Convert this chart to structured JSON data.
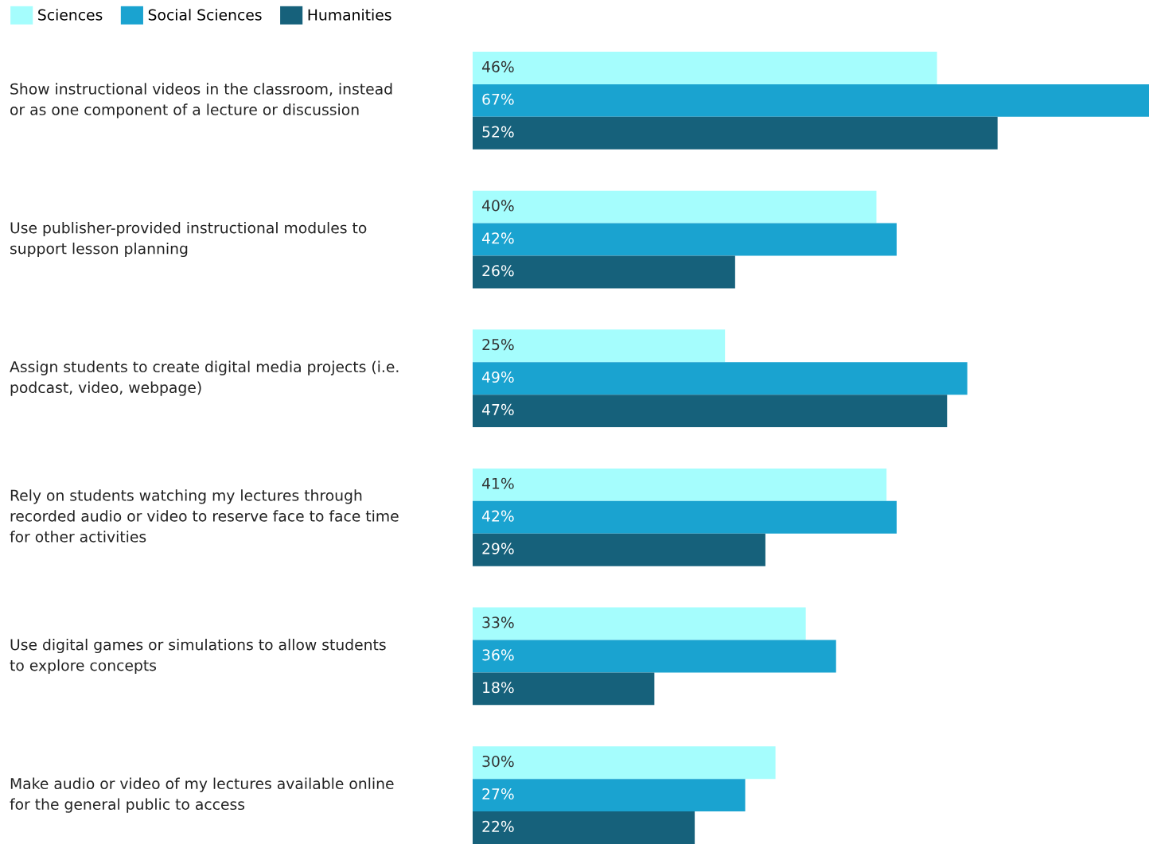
{
  "chart_data": {
    "type": "bar",
    "orientation": "horizontal",
    "legend": "top left",
    "categories": [
      "Show instructional videos in the classroom, instead\nor as one component of a lecture or discussion",
      "Use publisher-provided instructional modules to\nsupport lesson planning",
      "Assign students to create digital media projects (i.e.\npodcast, video, webpage)",
      "Rely on students watching my lectures through\nrecorded audio or video to reserve face to face time\nfor other activities",
      "Use digital games or simulations to allow students\nto explore concepts",
      "Make audio or video of my lectures available online\nfor the general public to access"
    ],
    "series": [
      {
        "name": "Sciences",
        "color": "#a5fdfd",
        "values": [
          46,
          40,
          25,
          41,
          33,
          30
        ],
        "value_labels": [
          "46%",
          "40%",
          "25%",
          "41%",
          "33%",
          "30%"
        ]
      },
      {
        "name": "Social Sciences",
        "color": "#1aa3d0",
        "values": [
          67,
          42,
          49,
          42,
          36,
          27
        ],
        "value_labels": [
          "67%",
          "42%",
          "49%",
          "42%",
          "36%",
          "27%"
        ]
      },
      {
        "name": "Humanities",
        "color": "#16617b",
        "values": [
          52,
          26,
          47,
          29,
          18,
          22
        ],
        "value_labels": [
          "52%",
          "26%",
          "47%",
          "29%",
          "18%",
          "22%"
        ]
      }
    ]
  }
}
